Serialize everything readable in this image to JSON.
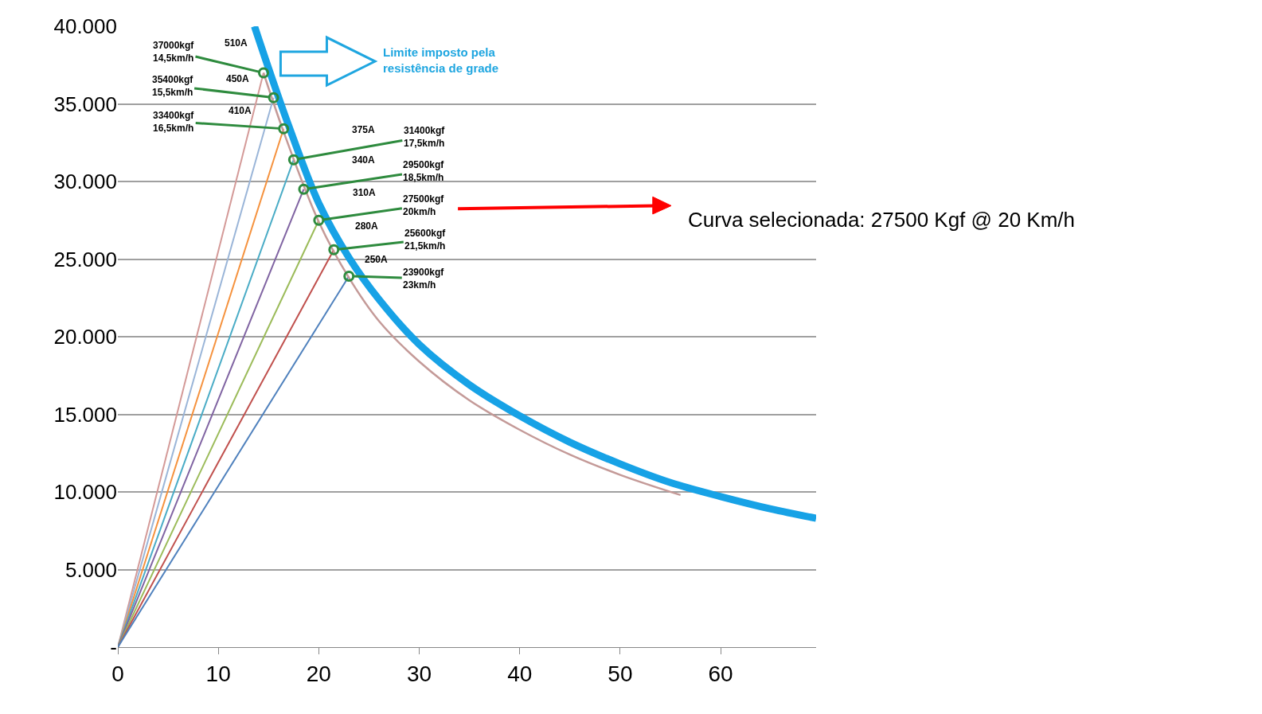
{
  "chart_data": {
    "type": "line",
    "xlim": [
      0,
      69.5
    ],
    "xticks": [
      0,
      10,
      20,
      30,
      40,
      50,
      60
    ],
    "ylim": [
      0,
      40000
    ],
    "yticks": [
      {
        "value": 0,
        "label": "-"
      },
      {
        "value": 5000,
        "label": "5.000"
      },
      {
        "value": 10000,
        "label": "10.000"
      },
      {
        "value": 15000,
        "label": "15.000"
      },
      {
        "value": 20000,
        "label": "20.000"
      },
      {
        "value": 25000,
        "label": "25.000"
      },
      {
        "value": 30000,
        "label": "30.000"
      },
      {
        "value": 35000,
        "label": "35.000"
      },
      {
        "value": 40000,
        "label": "40.000"
      }
    ],
    "grid": "y",
    "series": [
      {
        "color": "#d49a98",
        "x": [
          0,
          14.5
        ],
        "values": [
          0,
          37000
        ]
      },
      {
        "color": "#9ab5d8",
        "x": [
          0,
          15.5
        ],
        "values": [
          0,
          35400
        ]
      },
      {
        "color": "#f5923e",
        "x": [
          0,
          16.5
        ],
        "values": [
          0,
          33400
        ]
      },
      {
        "color": "#4aacc6",
        "x": [
          0,
          17.5
        ],
        "values": [
          0,
          31400
        ]
      },
      {
        "color": "#8064a2",
        "x": [
          0,
          18.5
        ],
        "values": [
          0,
          29500
        ]
      },
      {
        "color": "#9bbb59",
        "x": [
          0,
          20
        ],
        "values": [
          0,
          27500
        ]
      },
      {
        "color": "#c0504d",
        "x": [
          0,
          21.5
        ],
        "values": [
          0,
          25600
        ]
      },
      {
        "color": "#4f81bd",
        "x": [
          0,
          23
        ],
        "values": [
          0,
          23900
        ]
      },
      {
        "color": "#c49a98",
        "x": [
          14.5,
          16.5,
          20,
          23,
          26,
          30,
          35,
          40,
          45,
          50,
          56
        ],
        "values": [
          37000,
          33200,
          27400,
          23800,
          21000,
          18400,
          15900,
          14000,
          12400,
          11100,
          9800
        ]
      },
      {
        "color": "#17a2e6",
        "x": [
          13.6,
          15,
          17,
          20,
          23,
          26,
          30,
          35,
          40,
          45,
          50,
          55,
          60,
          65,
          69.5
        ],
        "values": [
          40000,
          37300,
          33600,
          28600,
          25100,
          22400,
          19500,
          16900,
          14900,
          13200,
          11800,
          10600,
          9700,
          8900,
          8300
        ]
      },
      {
        "type": "scatter",
        "marker": "circle",
        "color": "#2e8b3e",
        "x": [
          14.5,
          15.5,
          16.5,
          17.5,
          18.5,
          20,
          21.5,
          23
        ],
        "values": [
          37000,
          35400,
          33400,
          31400,
          29500,
          27500,
          25600,
          23900
        ]
      }
    ],
    "annotations": [
      {
        "text": "37000kgf\n14,5km/h",
        "x": 14.5,
        "y": 37000
      },
      {
        "text": "35400kgf\n15,5km/h",
        "x": 15.5,
        "y": 35400
      },
      {
        "text": "33400kgf\n16,5km/h",
        "x": 16.5,
        "y": 33400
      },
      {
        "text": "31400kgf\n17,5km/h",
        "x": 17.5,
        "y": 31400
      },
      {
        "text": "29500kgf\n18,5km/h",
        "x": 18.5,
        "y": 29500
      },
      {
        "text": "27500kgf\n20km/h",
        "x": 20,
        "y": 27500
      },
      {
        "text": "25600kgf\n21,5km/h",
        "x": 21.5,
        "y": 25600
      },
      {
        "text": "23900kgf\n23km/h",
        "x": 23,
        "y": 23900
      },
      "510A",
      "450A",
      "410A",
      "375A",
      "340A",
      "310A",
      "280A",
      "250A",
      "Limite imposto pela\nresistência de grade",
      "Curva selecionada: 27500 Kgf @ 20 Km/h"
    ]
  }
}
